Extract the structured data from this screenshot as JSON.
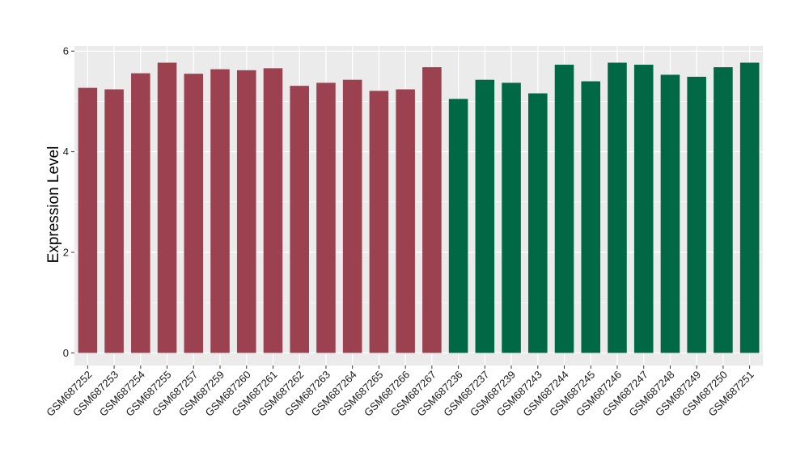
{
  "chart_data": {
    "type": "bar",
    "ylabel": "Expression Level",
    "xlabel": "",
    "ylim": [
      -0.25,
      6.1
    ],
    "y_ticks": [
      0,
      2,
      4,
      6
    ],
    "grid": true,
    "panel_background": "#ebebeb",
    "grid_color": "#ffffff",
    "group_colors": [
      "#9b4150",
      "#006845"
    ],
    "categories": [
      "GSM687252",
      "GSM687253",
      "GSM687254",
      "GSM687255",
      "GSM687257",
      "GSM687259",
      "GSM687260",
      "GSM687261",
      "GSM687262",
      "GSM687263",
      "GSM687264",
      "GSM687265",
      "GSM687266",
      "GSM687267",
      "GSM687236",
      "GSM687237",
      "GSM687239",
      "GSM687243",
      "GSM687244",
      "GSM687245",
      "GSM687246",
      "GSM687247",
      "GSM687248",
      "GSM687249",
      "GSM687250",
      "GSM687251"
    ],
    "values": [
      5.27,
      5.24,
      5.56,
      5.77,
      5.55,
      5.64,
      5.62,
      5.66,
      5.31,
      5.37,
      5.43,
      5.21,
      5.24,
      5.68,
      5.05,
      5.43,
      5.37,
      5.16,
      5.73,
      5.4,
      5.77,
      5.73,
      5.53,
      5.49,
      5.68,
      5.77
    ],
    "group_index": [
      0,
      0,
      0,
      0,
      0,
      0,
      0,
      0,
      0,
      0,
      0,
      0,
      0,
      0,
      1,
      1,
      1,
      1,
      1,
      1,
      1,
      1,
      1,
      1,
      1,
      1
    ]
  }
}
